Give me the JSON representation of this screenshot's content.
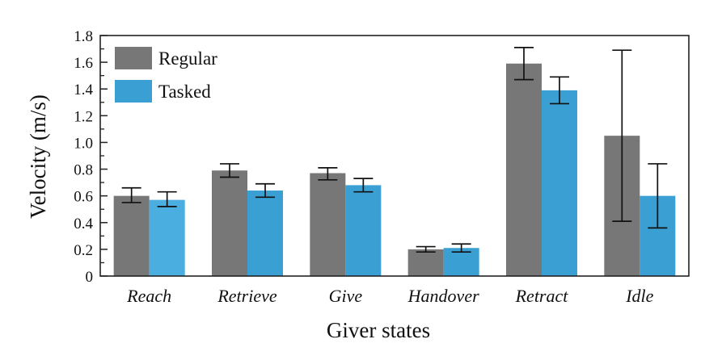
{
  "chart_data": {
    "type": "bar",
    "xlabel": "Giver states",
    "ylabel": "Velocity (m/s)",
    "ylim": [
      0,
      1.8
    ],
    "yticks": [
      "0",
      "0.2",
      "0.4",
      "0.6",
      "0.8",
      "1.0",
      "1.2",
      "1.4",
      "1.6",
      "1.8"
    ],
    "categories": [
      "Reach",
      "Retrieve",
      "Give",
      "Handover",
      "Retract",
      "Idle"
    ],
    "series": [
      {
        "name": "Regular",
        "color": "#777777",
        "values": [
          0.6,
          0.79,
          0.77,
          0.2,
          1.59,
          1.05
        ],
        "error_low": [
          0.55,
          0.74,
          0.72,
          0.18,
          1.47,
          0.41
        ],
        "error_high": [
          0.66,
          0.84,
          0.81,
          0.22,
          1.71,
          1.69
        ]
      },
      {
        "name": "Tasked",
        "color": "#3a9fd2",
        "values": [
          0.57,
          0.64,
          0.68,
          0.21,
          1.39,
          0.6
        ],
        "error_low": [
          0.52,
          0.59,
          0.63,
          0.18,
          1.29,
          0.36
        ],
        "error_high": [
          0.63,
          0.69,
          0.73,
          0.24,
          1.49,
          0.84
        ]
      }
    ],
    "legend_position": "top-left",
    "grid": false
  }
}
